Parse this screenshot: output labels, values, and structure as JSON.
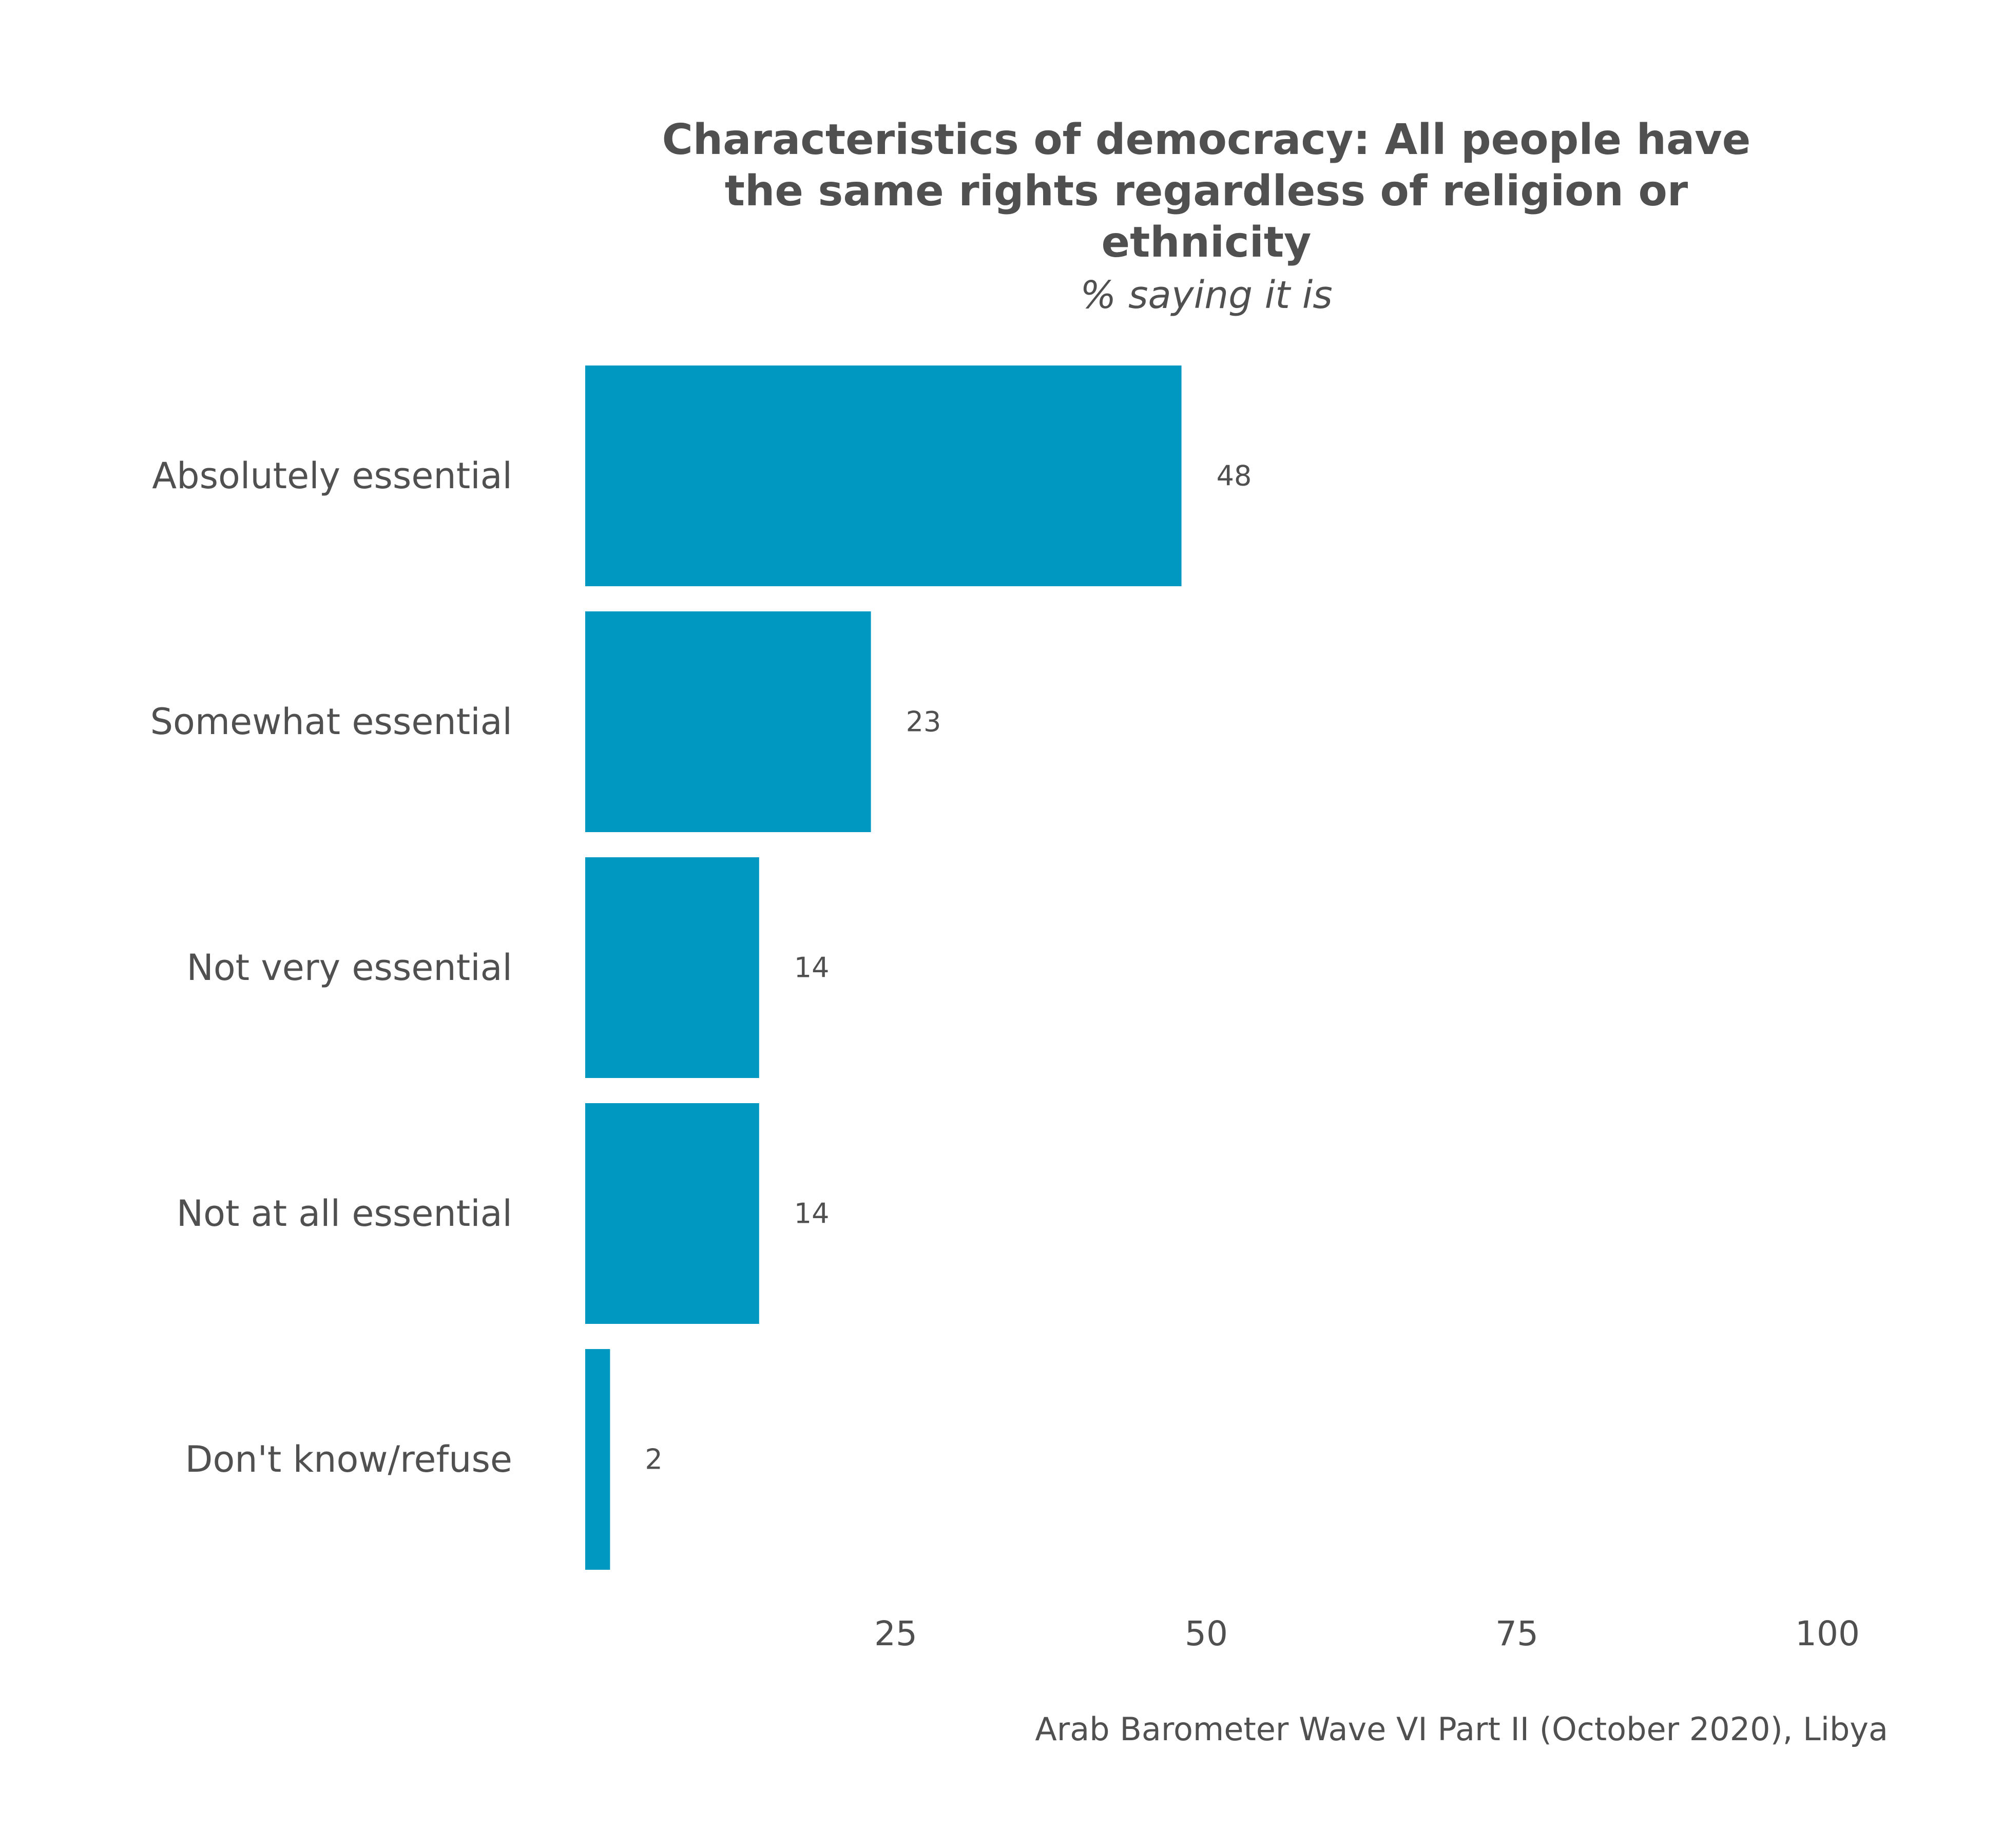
{
  "chart_data": {
    "type": "bar",
    "orientation": "horizontal",
    "title_lines": [
      "Characteristics of democracy: All people have",
      "the same rights regardless of religion or",
      "ethnicity"
    ],
    "subtitle": "% saying it is",
    "categories": [
      "Absolutely essential",
      "Somewhat essential",
      "Not very essential",
      "Not at all essential",
      "Don't know/refuse"
    ],
    "values": [
      48,
      23,
      14,
      14,
      2
    ],
    "value_labels": [
      "48",
      "23",
      "14",
      "14",
      "2"
    ],
    "xlim": [
      0,
      100
    ],
    "x_ticks": [
      25,
      50,
      75,
      100
    ],
    "x_tick_labels": [
      "25",
      "50",
      "75",
      "100"
    ],
    "grid": false,
    "legend": "none",
    "bar_color": "#0098C0",
    "caption": "Arab Barometer Wave VI Part II (October 2020), Libya"
  }
}
